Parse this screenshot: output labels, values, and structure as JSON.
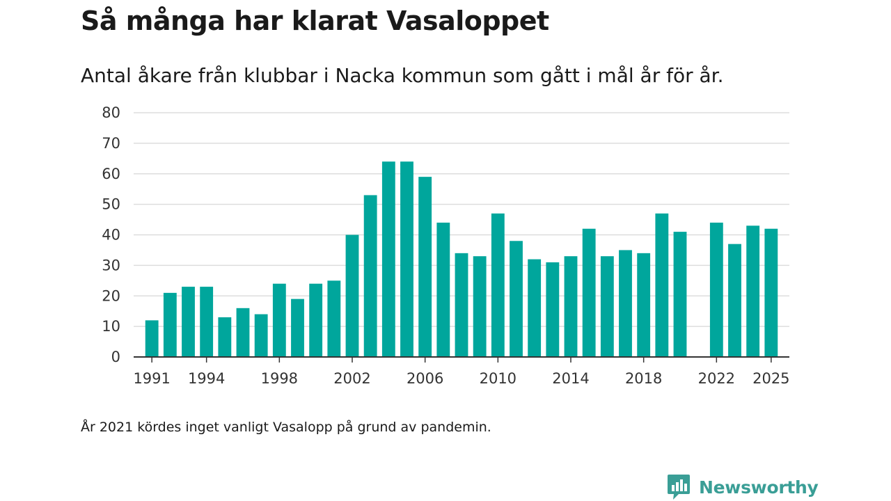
{
  "header": {
    "title": "Så många har klarat Vasaloppet",
    "subtitle": "Antal åkare från klubbar i Nacka kommun som gått i mål år för år."
  },
  "footer": {
    "note": "År 2021 kördes inget vanligt Vasalopp på grund av pandemin.",
    "brand": "Newsworthy"
  },
  "colors": {
    "bar": "#00a69c",
    "brand": "#3a9e96",
    "grid": "#dddddd",
    "axis": "#333333"
  },
  "chart_data": {
    "type": "bar",
    "title": "Så många har klarat Vasaloppet",
    "subtitle": "Antal åkare från klubbar i Nacka kommun som gått i mål år för år.",
    "xlabel": "",
    "ylabel": "",
    "ylim": [
      0,
      80
    ],
    "yticks": [
      0,
      10,
      20,
      30,
      40,
      50,
      60,
      70,
      80
    ],
    "xlim": [
      1990,
      2026
    ],
    "xtick_labels": [
      "1991",
      "1994",
      "1998",
      "2002",
      "2006",
      "2010",
      "2014",
      "2018",
      "2022",
      "2025"
    ],
    "grid": true,
    "categories": [
      1991,
      1992,
      1993,
      1994,
      1995,
      1996,
      1997,
      1998,
      1999,
      2000,
      2001,
      2002,
      2003,
      2004,
      2005,
      2006,
      2007,
      2008,
      2009,
      2010,
      2011,
      2012,
      2013,
      2014,
      2015,
      2016,
      2017,
      2018,
      2019,
      2020,
      2021,
      2022,
      2023,
      2024,
      2025
    ],
    "values": [
      12,
      21,
      23,
      23,
      13,
      16,
      14,
      24,
      19,
      24,
      25,
      40,
      53,
      64,
      64,
      59,
      44,
      34,
      33,
      47,
      38,
      32,
      31,
      33,
      42,
      33,
      35,
      34,
      47,
      41,
      null,
      44,
      37,
      43,
      42
    ]
  }
}
